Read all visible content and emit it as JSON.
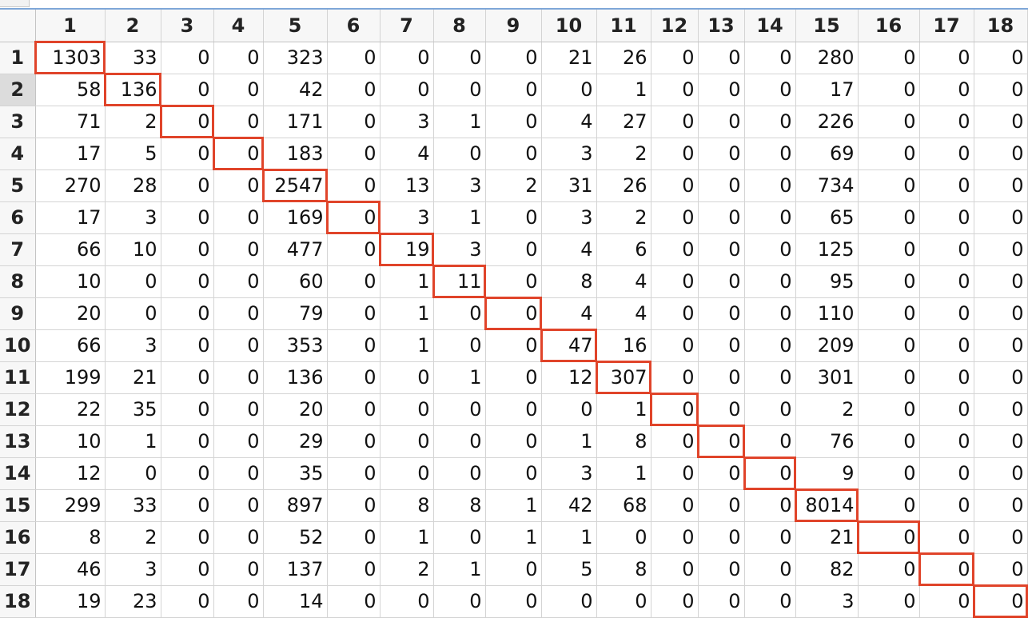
{
  "colors": {
    "highlight": "#e0442a",
    "header_bg": "#f7f7f7",
    "selected_row_header": "#dcdcdc",
    "top_border": "#7ea7d8"
  },
  "selected_row_index": 2,
  "highlight_diagonal": true,
  "matrix": {
    "column_headers": [
      "1",
      "2",
      "3",
      "4",
      "5",
      "6",
      "7",
      "8",
      "9",
      "10",
      "11",
      "12",
      "13",
      "14",
      "15",
      "16",
      "17",
      "18"
    ],
    "rows": [
      {
        "label": "1",
        "values": [
          "1303",
          "33",
          "0",
          "0",
          "323",
          "0",
          "0",
          "0",
          "0",
          "21",
          "26",
          "0",
          "0",
          "0",
          "280",
          "0",
          "0",
          "0"
        ]
      },
      {
        "label": "2",
        "values": [
          "58",
          "136",
          "0",
          "0",
          "42",
          "0",
          "0",
          "0",
          "0",
          "0",
          "1",
          "0",
          "0",
          "0",
          "17",
          "0",
          "0",
          "0"
        ]
      },
      {
        "label": "3",
        "values": [
          "71",
          "2",
          "0",
          "0",
          "171",
          "0",
          "3",
          "1",
          "0",
          "4",
          "27",
          "0",
          "0",
          "0",
          "226",
          "0",
          "0",
          "0"
        ]
      },
      {
        "label": "4",
        "values": [
          "17",
          "5",
          "0",
          "0",
          "183",
          "0",
          "4",
          "0",
          "0",
          "3",
          "2",
          "0",
          "0",
          "0",
          "69",
          "0",
          "0",
          "0"
        ]
      },
      {
        "label": "5",
        "values": [
          "270",
          "28",
          "0",
          "0",
          "2547",
          "0",
          "13",
          "3",
          "2",
          "31",
          "26",
          "0",
          "0",
          "0",
          "734",
          "0",
          "0",
          "0"
        ]
      },
      {
        "label": "6",
        "values": [
          "17",
          "3",
          "0",
          "0",
          "169",
          "0",
          "3",
          "1",
          "0",
          "3",
          "2",
          "0",
          "0",
          "0",
          "65",
          "0",
          "0",
          "0"
        ]
      },
      {
        "label": "7",
        "values": [
          "66",
          "10",
          "0",
          "0",
          "477",
          "0",
          "19",
          "3",
          "0",
          "4",
          "6",
          "0",
          "0",
          "0",
          "125",
          "0",
          "0",
          "0"
        ]
      },
      {
        "label": "8",
        "values": [
          "10",
          "0",
          "0",
          "0",
          "60",
          "0",
          "1",
          "11",
          "0",
          "8",
          "4",
          "0",
          "0",
          "0",
          "95",
          "0",
          "0",
          "0"
        ]
      },
      {
        "label": "9",
        "values": [
          "20",
          "0",
          "0",
          "0",
          "79",
          "0",
          "1",
          "0",
          "0",
          "4",
          "4",
          "0",
          "0",
          "0",
          "110",
          "0",
          "0",
          "0"
        ]
      },
      {
        "label": "10",
        "values": [
          "66",
          "3",
          "0",
          "0",
          "353",
          "0",
          "1",
          "0",
          "0",
          "47",
          "16",
          "0",
          "0",
          "0",
          "209",
          "0",
          "0",
          "0"
        ]
      },
      {
        "label": "11",
        "values": [
          "199",
          "21",
          "0",
          "0",
          "136",
          "0",
          "0",
          "1",
          "0",
          "12",
          "307",
          "0",
          "0",
          "0",
          "301",
          "0",
          "0",
          "0"
        ]
      },
      {
        "label": "12",
        "values": [
          "22",
          "35",
          "0",
          "0",
          "20",
          "0",
          "0",
          "0",
          "0",
          "0",
          "1",
          "0",
          "0",
          "0",
          "2",
          "0",
          "0",
          "0"
        ]
      },
      {
        "label": "13",
        "values": [
          "10",
          "1",
          "0",
          "0",
          "29",
          "0",
          "0",
          "0",
          "0",
          "1",
          "8",
          "0",
          "0",
          "0",
          "76",
          "0",
          "0",
          "0"
        ]
      },
      {
        "label": "14",
        "values": [
          "12",
          "0",
          "0",
          "0",
          "35",
          "0",
          "0",
          "0",
          "0",
          "3",
          "1",
          "0",
          "0",
          "0",
          "9",
          "0",
          "0",
          "0"
        ]
      },
      {
        "label": "15",
        "values": [
          "299",
          "33",
          "0",
          "0",
          "897",
          "0",
          "8",
          "8",
          "1",
          "42",
          "68",
          "0",
          "0",
          "0",
          "8014",
          "0",
          "0",
          "0"
        ]
      },
      {
        "label": "16",
        "values": [
          "8",
          "2",
          "0",
          "0",
          "52",
          "0",
          "1",
          "0",
          "1",
          "1",
          "0",
          "0",
          "0",
          "0",
          "21",
          "0",
          "0",
          "0"
        ]
      },
      {
        "label": "17",
        "values": [
          "46",
          "3",
          "0",
          "0",
          "137",
          "0",
          "2",
          "1",
          "0",
          "5",
          "8",
          "0",
          "0",
          "0",
          "82",
          "0",
          "0",
          "0"
        ]
      },
      {
        "label": "18",
        "values": [
          "19",
          "23",
          "0",
          "0",
          "14",
          "0",
          "0",
          "0",
          "0",
          "0",
          "0",
          "0",
          "0",
          "0",
          "3",
          "0",
          "0",
          "0"
        ]
      }
    ]
  }
}
